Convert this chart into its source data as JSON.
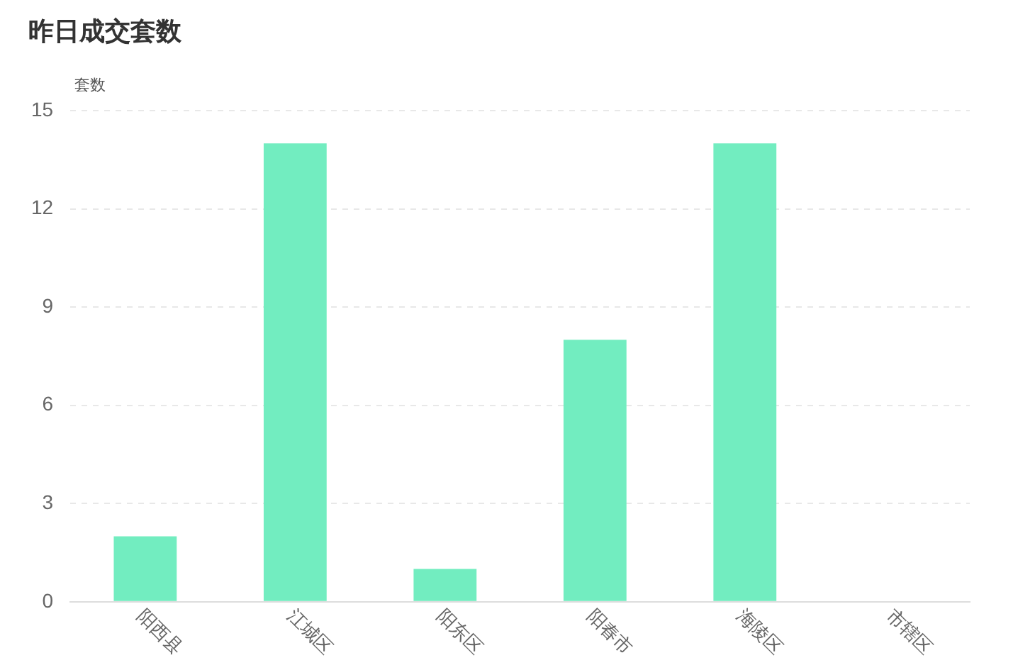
{
  "chart_data": {
    "type": "bar",
    "title": "昨日成交套数",
    "ylabel": "套数",
    "categories": [
      "阳西县",
      "江城区",
      "阳东区",
      "阳春市",
      "海陵区",
      "市辖区"
    ],
    "values": [
      2,
      14,
      1,
      8,
      14,
      0
    ],
    "color": "#72edc0",
    "ylim": [
      0,
      15
    ],
    "yticks": [
      0,
      3,
      6,
      9,
      12,
      15
    ],
    "grid": "y"
  }
}
